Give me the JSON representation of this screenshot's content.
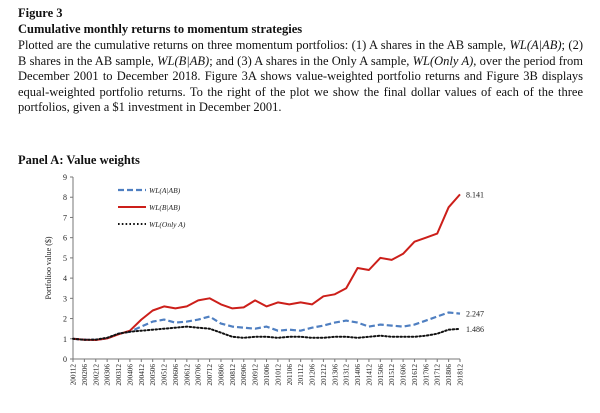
{
  "figure": {
    "label": "Figure 3",
    "title": "Cumulative monthly returns to momentum strategies",
    "description": [
      {
        "t": "Plotted are the cumulative returns on three momentum portfolios: (1) A shares in the AB sample, "
      },
      {
        "t": "WL(A|AB)",
        "i": true
      },
      {
        "t": "; (2) B shares in the AB sample, "
      },
      {
        "t": "WL(B|AB)",
        "i": true
      },
      {
        "t": "; and (3) A shares in the Only A sample, "
      },
      {
        "t": "WL(Only A)",
        "i": true
      },
      {
        "t": ", over the period from December 2001 to December 2018.  Figure 3A shows value-weighted portfolio returns and Figure 3B displays equal-weighted portfolio returns. To the right of the plot we show the final dollar values of each of the three portfolios, given a $1 investment in December 2001."
      }
    ]
  },
  "panel": {
    "title": "Panel A: Value weights"
  },
  "chart_data": {
    "type": "line",
    "ylabel": "Portfolioo value ($)",
    "ylim": [
      0,
      9
    ],
    "yticks": [
      0,
      1,
      2,
      3,
      4,
      5,
      6,
      7,
      8,
      9
    ],
    "grid": false,
    "legend_position": "top-left",
    "xticks": [
      "200112",
      "200206",
      "200212",
      "200306",
      "200312",
      "200406",
      "200412",
      "200506",
      "200512",
      "200606",
      "200612",
      "200706",
      "200712",
      "200806",
      "200812",
      "200906",
      "200912",
      "201006",
      "201012",
      "201106",
      "201112",
      "201206",
      "201212",
      "201306",
      "201312",
      "201406",
      "201412",
      "201506",
      "201512",
      "201606",
      "201612",
      "201706",
      "201712",
      "201806",
      "201812"
    ],
    "series": [
      {
        "name": "WL(A|AB)",
        "color": "#4f7fc1",
        "style": "dashed",
        "end_label": "2.247",
        "values": [
          1.0,
          0.96,
          0.95,
          1.02,
          1.25,
          1.35,
          1.6,
          1.85,
          1.95,
          1.8,
          1.85,
          1.95,
          2.1,
          1.75,
          1.6,
          1.55,
          1.5,
          1.6,
          1.4,
          1.45,
          1.4,
          1.55,
          1.65,
          1.8,
          1.9,
          1.8,
          1.6,
          1.7,
          1.65,
          1.6,
          1.7,
          1.9,
          2.1,
          2.3,
          2.247
        ]
      },
      {
        "name": "WL(B|AB)",
        "color": "#cc1f1a",
        "style": "solid",
        "end_label": "8.141",
        "values": [
          1.0,
          0.95,
          0.94,
          1.02,
          1.22,
          1.4,
          1.95,
          2.4,
          2.6,
          2.5,
          2.6,
          2.9,
          3.0,
          2.7,
          2.5,
          2.55,
          2.9,
          2.6,
          2.8,
          2.7,
          2.8,
          2.7,
          3.1,
          3.2,
          3.5,
          4.5,
          4.4,
          5.0,
          4.9,
          5.2,
          5.8,
          6.0,
          6.2,
          7.5,
          8.141
        ]
      },
      {
        "name": "WL(Only A)",
        "color": "#111111",
        "style": "dotted",
        "end_label": "1.486",
        "values": [
          1.0,
          0.95,
          0.96,
          1.05,
          1.25,
          1.35,
          1.4,
          1.45,
          1.5,
          1.55,
          1.6,
          1.55,
          1.5,
          1.3,
          1.1,
          1.05,
          1.1,
          1.1,
          1.05,
          1.1,
          1.1,
          1.05,
          1.05,
          1.1,
          1.1,
          1.05,
          1.1,
          1.15,
          1.1,
          1.1,
          1.1,
          1.15,
          1.25,
          1.45,
          1.486
        ]
      }
    ]
  }
}
